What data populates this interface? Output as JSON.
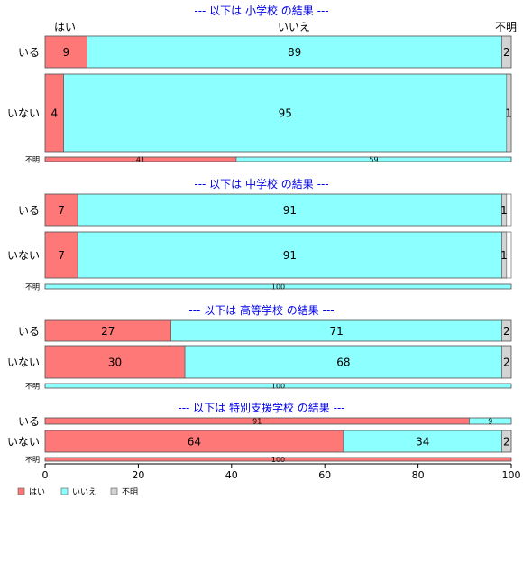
{
  "chart_data": {
    "type": "bar",
    "orientation": "horizontal",
    "stacked": true,
    "xlim": [
      0,
      100
    ],
    "x_ticks": [
      "0",
      "20",
      "40",
      "60",
      "80",
      "100"
    ],
    "categories_header": [
      "はい",
      "いいえ",
      "不明"
    ],
    "legend": {
      "placement": "bottom-left",
      "entries": [
        "はい",
        "いいえ",
        "不明"
      ]
    },
    "colors": {
      "はい": "#ff7878",
      "いいえ": "#8cffff",
      "不明": "#d3d3d3",
      "title": "#0000ee"
    },
    "panels": [
      {
        "title": "--- 以下は 小学校 の結果 ---",
        "rows": [
          {
            "label": "いる",
            "values": [
              9,
              89,
              2
            ],
            "value_labels": [
              "9",
              "89",
              "2"
            ]
          },
          {
            "label": "いない",
            "values": [
              4,
              95,
              1
            ],
            "value_labels": [
              "4",
              "95",
              "1"
            ]
          },
          {
            "label": "不明",
            "values": [
              41,
              59,
              0
            ],
            "value_labels": [
              "41",
              "59",
              ""
            ]
          }
        ]
      },
      {
        "title": "--- 以下は 中学校 の結果 ---",
        "rows": [
          {
            "label": "いる",
            "values": [
              7,
              91,
              1
            ],
            "value_labels": [
              "7",
              "91",
              "1"
            ]
          },
          {
            "label": "いない",
            "values": [
              7,
              91,
              1
            ],
            "value_labels": [
              "7",
              "91",
              "1"
            ]
          },
          {
            "label": "不明",
            "values": [
              0,
              100,
              0
            ],
            "value_labels": [
              "",
              "100",
              ""
            ]
          }
        ]
      },
      {
        "title": "--- 以下は 高等学校 の結果 ---",
        "rows": [
          {
            "label": "いる",
            "values": [
              27,
              71,
              2
            ],
            "value_labels": [
              "27",
              "71",
              "2"
            ]
          },
          {
            "label": "いない",
            "values": [
              30,
              68,
              2
            ],
            "value_labels": [
              "30",
              "68",
              "2"
            ]
          },
          {
            "label": "不明",
            "values": [
              0,
              100,
              0
            ],
            "value_labels": [
              "",
              "100",
              ""
            ]
          }
        ]
      },
      {
        "title": "--- 以下は 特別支援学校 の結果 ---",
        "rows": [
          {
            "label": "いる",
            "values": [
              91,
              9,
              0
            ],
            "value_labels": [
              "91",
              "9",
              ""
            ]
          },
          {
            "label": "いない",
            "values": [
              64,
              34,
              2
            ],
            "value_labels": [
              "64",
              "34",
              "2"
            ]
          },
          {
            "label": "不明",
            "values": [
              100,
              0,
              0
            ],
            "value_labels": [
              "100",
              "",
              ""
            ]
          }
        ]
      }
    ]
  }
}
